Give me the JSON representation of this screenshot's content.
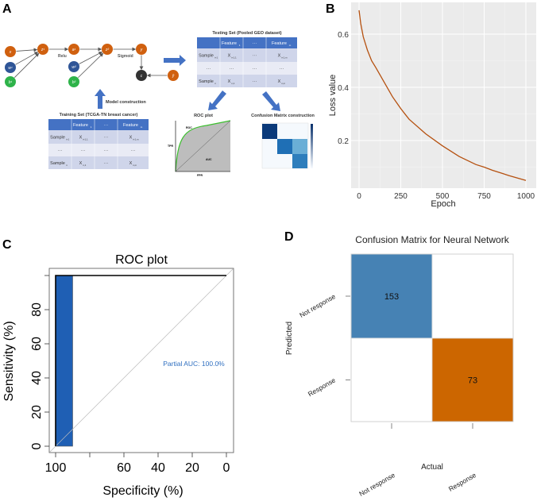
{
  "panel_labels": {
    "a": "A",
    "b": "B",
    "c": "C",
    "d": "D"
  },
  "panel_a": {
    "nodes": {
      "x": "x",
      "w1": "w¹",
      "b1": "b¹",
      "z1": "z¹",
      "a1": "a¹",
      "w2": "w²",
      "b2": "b²",
      "z2": "z²",
      "y": "y",
      "c": "c",
      "yhat": "ŷ"
    },
    "relu_label": "Relu",
    "sigmoid_label": "Sigmoid",
    "model_construction_label": "Model construction",
    "testing_title": "Testing Set (Pooled GEO dataset)",
    "training_title": "Training Set (TCGA-TN breast cancer)",
    "roc_title": "ROC plot",
    "roc_mini": {
      "roc": "ROC",
      "tpr": "TPR",
      "fpr": "FPR",
      "auc": "AUC"
    },
    "confusion_title": "Confusion Matrix construction",
    "table": {
      "header": [
        [
          "",
          ""
        ],
        [
          "Feature",
          "1"
        ],
        [
          "···",
          ""
        ],
        [
          "Feature",
          "m"
        ]
      ],
      "rows": [
        [
          [
            "Sample",
            "i+1"
          ],
          [
            "X",
            "i+1,1"
          ],
          [
            "···",
            ""
          ],
          [
            "X",
            "i+1,m"
          ]
        ],
        [
          [
            "···",
            ""
          ],
          [
            "···",
            ""
          ],
          [
            "···",
            ""
          ],
          [
            "···",
            ""
          ]
        ],
        [
          [
            "Sample",
            "n"
          ],
          [
            "X",
            "n,1"
          ],
          [
            "···",
            ""
          ],
          [
            "X",
            "n,m"
          ]
        ]
      ]
    },
    "colors": {
      "orange": "#d0600f",
      "blue": "#2f5597",
      "green": "#2eb34a",
      "dark": "#333333",
      "arrow": "#4472c4"
    }
  },
  "chart_data": [
    {
      "type": "line",
      "panel": "B",
      "xlabel": "Epoch",
      "ylabel": "Loss value",
      "xticks": [
        0,
        250,
        500,
        750,
        1000
      ],
      "yticks": [
        0.2,
        0.4,
        0.6
      ],
      "xlim": [
        -40,
        1040
      ],
      "ylim": [
        0.03,
        0.72
      ],
      "grid": true,
      "color": "#b5500f",
      "x": [
        0,
        10,
        25,
        50,
        75,
        100,
        150,
        200,
        250,
        300,
        400,
        500,
        600,
        700,
        750,
        800,
        900,
        1000
      ],
      "y": [
        0.69,
        0.64,
        0.59,
        0.54,
        0.5,
        0.475,
        0.42,
        0.365,
        0.32,
        0.28,
        0.225,
        0.18,
        0.14,
        0.11,
        0.1,
        0.088,
        0.068,
        0.05
      ]
    },
    {
      "type": "line",
      "panel": "C",
      "title": "ROC plot",
      "xlabel": "Specificity (%)",
      "ylabel": "Sensitivity (%)",
      "xticks": [
        100,
        80,
        60,
        40,
        20,
        0
      ],
      "xticklabels": [
        "100",
        "",
        "60",
        "40",
        "20",
        "0"
      ],
      "yticks": [
        0,
        20,
        40,
        60,
        80,
        100
      ],
      "yticklabels": [
        "0",
        "20",
        "40",
        "60",
        "80",
        ""
      ],
      "roc_x": [
        100,
        100,
        0
      ],
      "roc_y": [
        0,
        100,
        100
      ],
      "partial_auc_region": {
        "specificity": [
          100,
          90
        ],
        "sensitivity": [
          0,
          100
        ],
        "color": "#1f5fb4"
      },
      "annotation": "Partial AUC: 100.0%",
      "annotation_color": "#2f6fc0"
    },
    {
      "type": "heatmap",
      "panel": "D",
      "title": "Confusion Matrix for Neural Network",
      "xlabel": "Actual",
      "ylabel": "Predicted",
      "x_categories": [
        "Not response",
        "Response"
      ],
      "y_categories": [
        "Not response",
        "Response"
      ],
      "cells": [
        {
          "actual": "Not response",
          "predicted": "Not response",
          "value": 153,
          "color": "#4682b4"
        },
        {
          "actual": "Response",
          "predicted": "Not response",
          "value": null,
          "color": "#ffffff"
        },
        {
          "actual": "Not response",
          "predicted": "Response",
          "value": null,
          "color": "#ffffff"
        },
        {
          "actual": "Response",
          "predicted": "Response",
          "value": 73,
          "color": "#cc6600"
        }
      ]
    }
  ]
}
